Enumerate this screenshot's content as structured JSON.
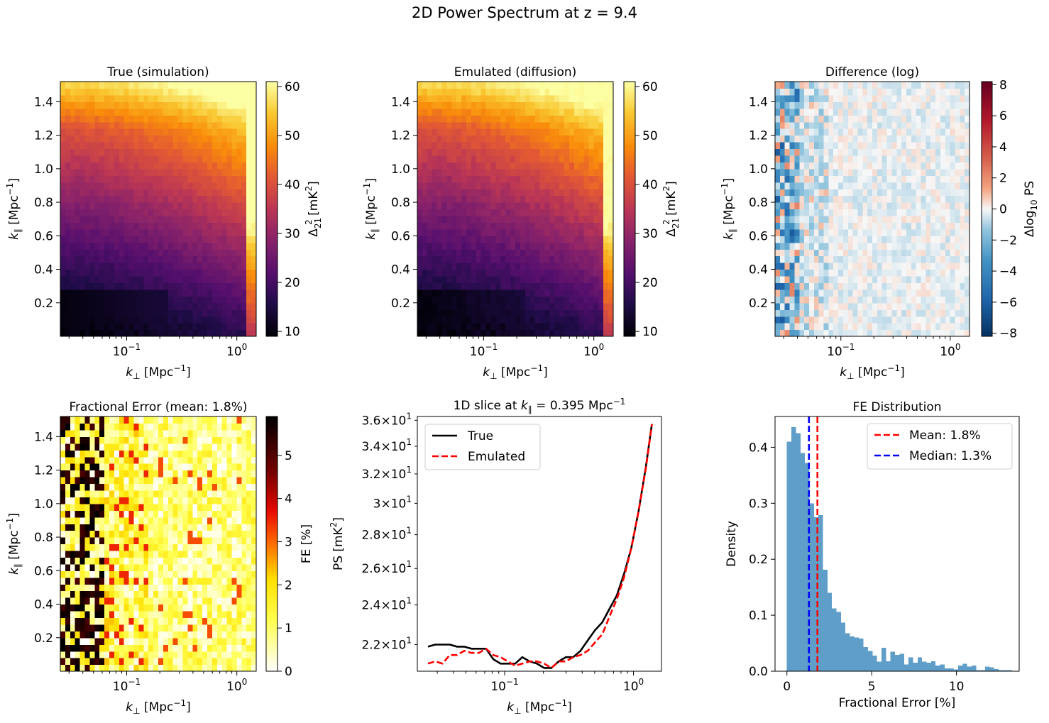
{
  "figure": {
    "title": "2D Power Spectrum at z = 9.4"
  },
  "chart_data": [
    {
      "type": "heatmap",
      "title": "True (simulation)",
      "xlabel_main": "k",
      "xlabel_sub": "⊥",
      "xlabel_unit": "[Mpc",
      "xlabel_exp": "−1",
      "xlabel_close": "]",
      "ylabel_main": "k",
      "ylabel_sub": "∥",
      "ylabel_unit": "[Mpc",
      "ylabel_exp": "−1",
      "ylabel_close": "]",
      "x_scale": "log",
      "xlim": [
        0.025,
        1.5
      ],
      "x_ticks": [
        {
          "base": "10",
          "exp": "−1",
          "value": 0.1
        },
        {
          "base": "10",
          "exp": "0",
          "value": 1
        }
      ],
      "ylim": [
        0.0,
        1.52
      ],
      "y_ticks": [
        "0.2",
        "0.4",
        "0.6",
        "0.8",
        "1.0",
        "1.2",
        "1.4"
      ],
      "grid": "40 columns (log k⊥) × 38 rows (k∥), no missing cells",
      "colormap": "inferno",
      "colorbar": {
        "ticks": [
          "10",
          "20",
          "30",
          "40",
          "50",
          "60"
        ],
        "range": [
          9,
          61
        ],
        "label_main": "Δ",
        "label_sub": "21",
        "label_sup": "2",
        "label_unit": "[mK",
        "label_unit_sup": "2",
        "label_close": "]"
      },
      "pattern": "values ≈ 10 at low k⊥ and low k∥, rising towards ≈ 60 at high k∥ (top) and at the highest k⊥ column"
    },
    {
      "type": "heatmap",
      "title": "Emulated (diffusion)",
      "xlabel_main": "k",
      "xlabel_sub": "⊥",
      "xlabel_unit": "[Mpc",
      "xlabel_exp": "−1",
      "xlabel_close": "]",
      "ylabel_main": "k",
      "ylabel_sub": "∥",
      "ylabel_unit": "[Mpc",
      "ylabel_exp": "−1",
      "ylabel_close": "]",
      "x_scale": "log",
      "xlim": [
        0.025,
        1.5
      ],
      "x_ticks": [
        {
          "base": "10",
          "exp": "−1",
          "value": 0.1
        },
        {
          "base": "10",
          "exp": "0",
          "value": 1
        }
      ],
      "ylim": [
        0.0,
        1.52
      ],
      "y_ticks": [
        "0.2",
        "0.4",
        "0.6",
        "0.8",
        "1.0",
        "1.2",
        "1.4"
      ],
      "colormap": "inferno",
      "colorbar": {
        "ticks": [
          "10",
          "20",
          "30",
          "40",
          "50",
          "60"
        ],
        "range": [
          9,
          61
        ],
        "label_main": "Δ",
        "label_sub": "21",
        "label_sup": "2",
        "label_unit": "[mK",
        "label_unit_sup": "2",
        "label_close": "]"
      }
    },
    {
      "type": "heatmap",
      "title": "Difference (log)",
      "xlabel_main": "k",
      "xlabel_sub": "⊥",
      "xlabel_unit": "[Mpc",
      "xlabel_exp": "−1",
      "xlabel_close": "]",
      "ylabel_main": "k",
      "ylabel_sub": "∥",
      "ylabel_unit": "[Mpc",
      "ylabel_exp": "−1",
      "ylabel_close": "]",
      "x_scale": "log",
      "xlim": [
        0.025,
        1.5
      ],
      "x_ticks": [
        {
          "base": "10",
          "exp": "−1",
          "value": 0.1
        },
        {
          "base": "10",
          "exp": "0",
          "value": 1
        }
      ],
      "ylim": [
        0.0,
        1.52
      ],
      "y_ticks": [
        "0.2",
        "0.4",
        "0.6",
        "0.8",
        "1.0",
        "1.2",
        "1.4"
      ],
      "colormap": "RdBu_r (diverging)",
      "colorbar": {
        "ticks": [
          "−8",
          "−6",
          "−4",
          "−2",
          "0",
          "2",
          "4",
          "6",
          "8"
        ],
        "range": [
          -8.2,
          8.2
        ],
        "label_main": "Δlog",
        "label_sub": "10",
        "label_tail": " PS"
      },
      "pattern": "mostly near 0 (white/light blue); stronger negative cells (≈ −4 to −7) in the leftmost columns, a few positive (≈ 1 to 2)"
    },
    {
      "type": "heatmap",
      "title": "Fractional Error (mean: 1.8%)",
      "xlabel_main": "k",
      "xlabel_sub": "⊥",
      "xlabel_unit": "[Mpc",
      "xlabel_exp": "−1",
      "xlabel_close": "]",
      "ylabel_main": "k",
      "ylabel_sub": "∥",
      "ylabel_unit": "[Mpc",
      "ylabel_exp": "−1",
      "ylabel_close": "]",
      "x_scale": "log",
      "xlim": [
        0.025,
        1.5
      ],
      "x_ticks": [
        {
          "base": "10",
          "exp": "−1",
          "value": 0.1
        },
        {
          "base": "10",
          "exp": "0",
          "value": 1
        }
      ],
      "ylim": [
        0.0,
        1.52
      ],
      "y_ticks": [
        "0.2",
        "0.4",
        "0.6",
        "0.8",
        "1.0",
        "1.2",
        "1.4"
      ],
      "colormap": "hot_r",
      "colorbar": {
        "ticks": [
          "0",
          "1",
          "2",
          "3",
          "4",
          "5"
        ],
        "range": [
          0,
          5.9
        ],
        "label": "FE [%]"
      },
      "pattern": "high errors (4–6%) concentrated in leftmost columns, mostly 0–2% elsewhere"
    },
    {
      "type": "line",
      "title_pre": "1D slice at ",
      "title_k": "k",
      "title_sub": "∥",
      "title_post": " = 0.395 Mpc",
      "title_exp": "−1",
      "xlabel_main": "k",
      "xlabel_sub": "⊥",
      "xlabel_unit": "[Mpc",
      "xlabel_exp": "−1",
      "xlabel_close": "]",
      "ylabel_main": "PS [mK",
      "ylabel_sup": "2",
      "ylabel_close": "]",
      "x_scale": "log",
      "y_scale": "log",
      "xlim": [
        0.021,
        1.65
      ],
      "ylim": [
        20.75,
        36.3
      ],
      "x_ticks": [
        {
          "base": "10",
          "exp": "−1",
          "value": 0.1
        },
        {
          "base": "10",
          "exp": "0",
          "value": 1
        }
      ],
      "y_ticks": [
        {
          "mant": "2.2",
          "value": 22
        },
        {
          "mant": "2.4",
          "value": 24
        },
        {
          "mant": "2.6",
          "value": 26
        },
        {
          "mant": "2.8",
          "value": 28
        },
        {
          "mant": "3",
          "value": 30
        },
        {
          "mant": "3.2",
          "value": 32
        },
        {
          "mant": "3.4",
          "value": 34
        },
        {
          "mant": "3.6",
          "value": 36
        }
      ],
      "y_tick_times": "×",
      "y_tick_base": "10",
      "y_tick_exp": "1",
      "legend_position": "upper left",
      "x": [
        0.0254,
        0.0289,
        0.0329,
        0.0375,
        0.0427,
        0.0486,
        0.0553,
        0.063,
        0.0717,
        0.0817,
        0.093,
        0.1059,
        0.1206,
        0.1373,
        0.1563,
        0.178,
        0.2027,
        0.2308,
        0.2628,
        0.2992,
        0.3407,
        0.3879,
        0.4417,
        0.5029,
        0.5726,
        0.652,
        0.7424,
        0.8454,
        0.9626,
        1.0961,
        1.2481,
        1.3901
      ],
      "series": [
        {
          "name": "True",
          "color": "#000000",
          "dash": "solid",
          "values": [
            21.9,
            22.0,
            22.0,
            22.0,
            21.9,
            21.9,
            21.8,
            21.8,
            21.8,
            21.3,
            21.1,
            21.1,
            21.1,
            21.4,
            21.2,
            21.1,
            20.9,
            20.9,
            21.2,
            21.4,
            21.4,
            21.7,
            22.2,
            22.7,
            23.1,
            23.8,
            24.5,
            25.7,
            27.2,
            29.5,
            32.5,
            35.7
          ]
        },
        {
          "name": "Emulated",
          "color": "#ff0000",
          "dash": "dashed",
          "values": [
            21.1,
            21.2,
            21.1,
            21.5,
            21.5,
            21.7,
            21.6,
            21.6,
            21.8,
            21.5,
            21.4,
            21.2,
            21.0,
            21.1,
            21.2,
            21.2,
            21.1,
            20.9,
            21.2,
            21.2,
            21.4,
            21.5,
            21.7,
            22.1,
            22.5,
            23.4,
            24.3,
            25.5,
            27.2,
            29.5,
            32.4,
            35.7
          ]
        }
      ]
    },
    {
      "type": "bar",
      "subtype": "histogram",
      "title": "FE Distribution",
      "xlabel": "Fractional Error [%]",
      "ylabel": "Density",
      "xlim": [
        -0.7,
        13.7
      ],
      "ylim": [
        0,
        0.455
      ],
      "x_ticks": [
        "0",
        "5",
        "10"
      ],
      "y_ticks": [
        "0.0",
        "0.1",
        "0.2",
        "0.3",
        "0.4"
      ],
      "bar_color": "#5f9ec9",
      "bin_start": 0.0,
      "bin_width": 0.2657,
      "values": [
        0.41,
        0.436,
        0.425,
        0.39,
        0.372,
        0.3,
        0.275,
        0.279,
        0.181,
        0.14,
        0.112,
        0.106,
        0.087,
        0.068,
        0.062,
        0.06,
        0.058,
        0.043,
        0.036,
        0.028,
        0.017,
        0.042,
        0.018,
        0.035,
        0.029,
        0.031,
        0.012,
        0.025,
        0.015,
        0.025,
        0.017,
        0.015,
        0.018,
        0.01,
        0.012,
        0.005,
        0.005,
        0.003,
        0.01,
        0.013,
        0.008,
        0.01,
        0.002,
        0.002,
        0.008,
        0.007,
        0.004,
        0.002,
        0.002,
        0.002
      ],
      "vlines": [
        {
          "label": "Mean: 1.8%",
          "x": 1.8,
          "color": "#ff0000"
        },
        {
          "label": "Median: 1.3%",
          "x": 1.3,
          "color": "#0000ff"
        }
      ],
      "legend_position": "upper right"
    }
  ]
}
